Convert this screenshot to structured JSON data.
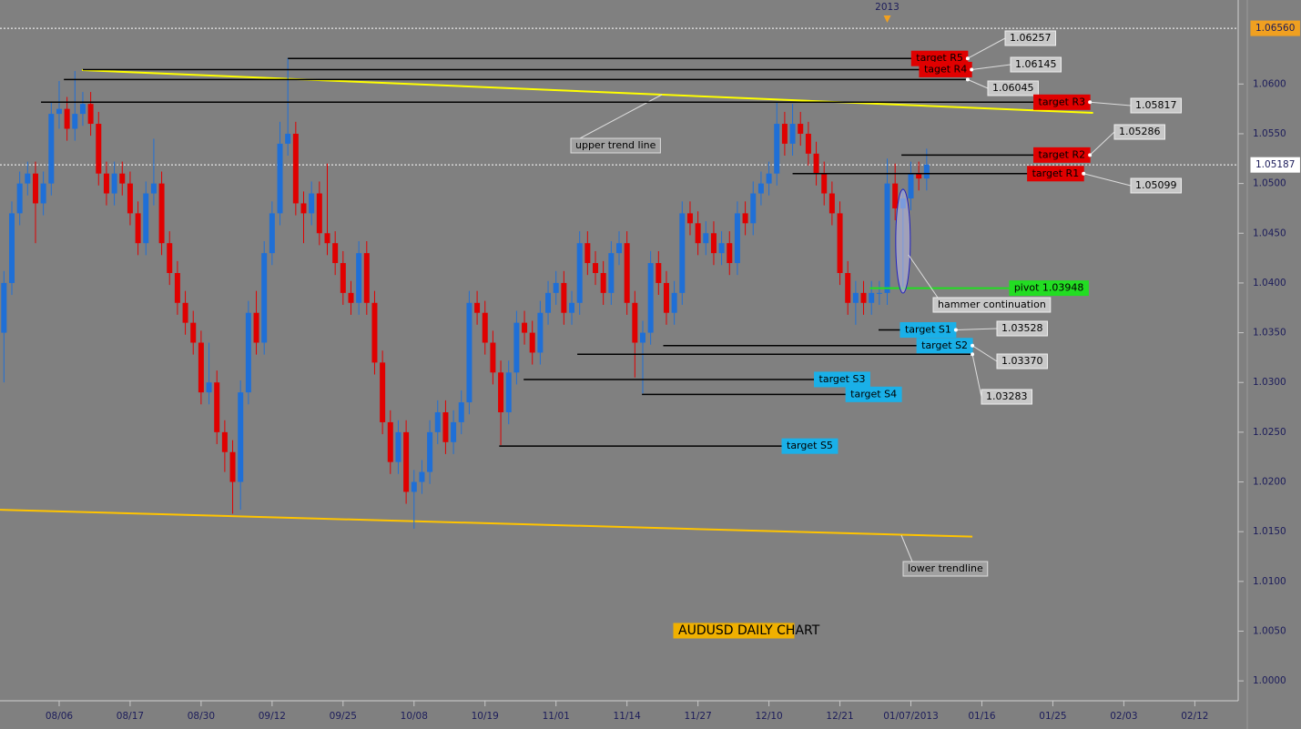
{
  "chart_data": {
    "type": "candlestick",
    "title": "AUDUSD DAILY CHART",
    "up_color": "#1f6fd6",
    "down_color": "#e00000",
    "open": [
      1.035,
      1.04,
      1.047,
      1.05,
      1.051,
      1.048,
      1.05,
      1.057,
      1.0575,
      1.0555,
      1.057,
      1.058,
      1.056,
      1.051,
      1.049,
      1.051,
      1.05,
      1.047,
      1.044,
      1.049,
      1.05,
      1.044,
      1.041,
      1.038,
      1.036,
      1.034,
      1.029,
      1.03,
      1.025,
      1.023,
      1.02,
      1.029,
      1.037,
      1.034,
      1.043,
      1.047,
      1.054,
      1.055,
      1.048,
      1.047,
      1.049,
      1.045,
      1.044,
      1.042,
      1.039,
      1.038,
      1.043,
      1.038,
      1.032,
      1.026,
      1.022,
      1.025,
      1.019,
      1.02,
      1.021,
      1.025,
      1.027,
      1.024,
      1.026,
      1.028,
      1.038,
      1.037,
      1.034,
      1.031,
      1.027,
      1.031,
      1.036,
      1.035,
      1.033,
      1.037,
      1.039,
      1.04,
      1.037,
      1.038,
      1.044,
      1.042,
      1.041,
      1.039,
      1.043,
      1.044,
      1.038,
      1.034,
      1.035,
      1.042,
      1.04,
      1.037,
      1.039,
      1.047,
      1.046,
      1.044,
      1.045,
      1.043,
      1.044,
      1.042,
      1.047,
      1.046,
      1.049,
      1.05,
      1.051,
      1.056,
      1.054,
      1.056,
      1.055,
      1.053,
      1.051,
      1.049,
      1.047,
      1.041,
      1.038,
      1.039,
      1.038,
      1.039,
      1.039,
      1.05,
      1.0475,
      1.0485,
      1.051,
      1.0505
    ],
    "high": [
      1.0412,
      1.0482,
      1.0512,
      1.0522,
      1.0522,
      1.0512,
      1.0582,
      1.0603,
      1.0587,
      1.0613,
      1.0592,
      1.0592,
      1.0572,
      1.0522,
      1.0522,
      1.0522,
      1.0512,
      1.0482,
      1.0502,
      1.0545,
      1.0512,
      1.0452,
      1.0422,
      1.0392,
      1.0372,
      1.0352,
      1.034,
      1.0312,
      1.0262,
      1.0242,
      1.0302,
      1.0382,
      1.0392,
      1.0442,
      1.0482,
      1.0562,
      1.0626,
      1.0562,
      1.0492,
      1.0502,
      1.0502,
      1.052,
      1.0452,
      1.0432,
      1.0402,
      1.0442,
      1.0442,
      1.0392,
      1.0332,
      1.0272,
      1.0262,
      1.0262,
      1.0212,
      1.0222,
      1.0262,
      1.0282,
      1.0282,
      1.0272,
      1.0292,
      1.0392,
      1.0392,
      1.0382,
      1.0352,
      1.0322,
      1.0322,
      1.0372,
      1.0372,
      1.0362,
      1.0382,
      1.0402,
      1.0412,
      1.0412,
      1.0392,
      1.0452,
      1.0452,
      1.0432,
      1.0422,
      1.0442,
      1.0452,
      1.0452,
      1.0392,
      1.0362,
      1.0432,
      1.0432,
      1.0412,
      1.0402,
      1.0482,
      1.0482,
      1.0472,
      1.0462,
      1.0462,
      1.0452,
      1.0452,
      1.0482,
      1.0482,
      1.0502,
      1.0512,
      1.0522,
      1.0582,
      1.0572,
      1.058,
      1.0572,
      1.0562,
      1.0542,
      1.0522,
      1.0502,
      1.0482,
      1.0422,
      1.0402,
      1.0402,
      1.0402,
      1.0402,
      1.0525,
      1.052,
      1.0495,
      1.0522,
      1.0522,
      1.0535
    ],
    "low": [
      1.03,
      1.0388,
      1.0458,
      1.0488,
      1.044,
      1.0468,
      1.0488,
      1.0555,
      1.0543,
      1.0543,
      1.0558,
      1.0548,
      1.0498,
      1.0478,
      1.0478,
      1.0488,
      1.0458,
      1.0428,
      1.0428,
      1.0478,
      1.0428,
      1.0398,
      1.0368,
      1.0348,
      1.0328,
      1.0278,
      1.0278,
      1.0238,
      1.021,
      1.0168,
      1.0172,
      1.0278,
      1.0328,
      1.0328,
      1.0418,
      1.0458,
      1.0528,
      1.0468,
      1.044,
      1.0458,
      1.0438,
      1.0428,
      1.0408,
      1.0378,
      1.0368,
      1.0368,
      1.0368,
      1.0308,
      1.0248,
      1.0208,
      1.0208,
      1.0178,
      1.0153,
      1.0188,
      1.0198,
      1.0238,
      1.0228,
      1.0228,
      1.0248,
      1.0268,
      1.0358,
      1.0328,
      1.0298,
      1.0237,
      1.0258,
      1.0298,
      1.0338,
      1.0318,
      1.0318,
      1.0358,
      1.0378,
      1.0358,
      1.0358,
      1.0368,
      1.0408,
      1.0398,
      1.0378,
      1.0378,
      1.0418,
      1.0368,
      1.0305,
      1.0289,
      1.0338,
      1.0388,
      1.0358,
      1.0358,
      1.0378,
      1.0448,
      1.0428,
      1.0428,
      1.0418,
      1.0418,
      1.0408,
      1.0408,
      1.0448,
      1.0448,
      1.0478,
      1.0488,
      1.0498,
      1.0528,
      1.0528,
      1.0538,
      1.0518,
      1.0498,
      1.0478,
      1.0458,
      1.0398,
      1.0368,
      1.0358,
      1.0368,
      1.0368,
      1.0378,
      1.0378,
      1.0463,
      1.0395,
      1.0473,
      1.0493,
      1.0493
    ],
    "close": [
      1.04,
      1.047,
      1.05,
      1.051,
      1.048,
      1.05,
      1.057,
      1.0575,
      1.0555,
      1.057,
      1.058,
      1.056,
      1.051,
      1.049,
      1.051,
      1.05,
      1.047,
      1.044,
      1.049,
      1.05,
      1.044,
      1.041,
      1.038,
      1.036,
      1.034,
      1.029,
      1.03,
      1.025,
      1.023,
      1.02,
      1.029,
      1.037,
      1.034,
      1.043,
      1.047,
      1.054,
      1.055,
      1.048,
      1.047,
      1.049,
      1.045,
      1.044,
      1.042,
      1.039,
      1.038,
      1.043,
      1.038,
      1.032,
      1.026,
      1.022,
      1.025,
      1.019,
      1.02,
      1.021,
      1.025,
      1.027,
      1.024,
      1.026,
      1.028,
      1.038,
      1.037,
      1.034,
      1.031,
      1.027,
      1.031,
      1.036,
      1.035,
      1.033,
      1.037,
      1.039,
      1.04,
      1.037,
      1.038,
      1.044,
      1.042,
      1.041,
      1.039,
      1.043,
      1.044,
      1.038,
      1.034,
      1.035,
      1.042,
      1.04,
      1.037,
      1.039,
      1.047,
      1.046,
      1.044,
      1.045,
      1.043,
      1.044,
      1.042,
      1.047,
      1.046,
      1.049,
      1.05,
      1.051,
      1.056,
      1.054,
      1.056,
      1.055,
      1.053,
      1.051,
      1.049,
      1.047,
      1.041,
      1.038,
      1.039,
      1.038,
      1.039,
      1.039,
      1.05,
      1.0475,
      1.0485,
      1.051,
      1.0505,
      1.0519
    ],
    "xlim": [
      -0.5,
      156.5
    ],
    "xticks": [
      {
        "value": 7,
        "label": "08/06"
      },
      {
        "value": 16,
        "label": "08/17"
      },
      {
        "value": 25,
        "label": "08/30"
      },
      {
        "value": 34,
        "label": "09/12"
      },
      {
        "value": 43,
        "label": "09/25"
      },
      {
        "value": 52,
        "label": "10/08"
      },
      {
        "value": 61,
        "label": "10/19"
      },
      {
        "value": 70,
        "label": "11/01"
      },
      {
        "value": 79,
        "label": "11/14"
      },
      {
        "value": 88,
        "label": "11/27"
      },
      {
        "value": 97,
        "label": "12/10"
      },
      {
        "value": 106,
        "label": "12/21"
      },
      {
        "value": 115,
        "label": "01/07/2013"
      },
      {
        "value": 124,
        "label": "01/16"
      },
      {
        "value": 133,
        "label": "01/25"
      },
      {
        "value": 142,
        "label": "02/03"
      },
      {
        "value": 151,
        "label": "02/12"
      }
    ],
    "ylim": [
      0.998,
      1.0657
    ],
    "yticks": [
      {
        "value": 1,
        "label": "1.0000"
      },
      {
        "value": 1.005,
        "label": "1.0050"
      },
      {
        "value": 1.01,
        "label": "1.0100"
      },
      {
        "value": 1.015,
        "label": "1.0150"
      },
      {
        "value": 1.02,
        "label": "1.0200"
      },
      {
        "value": 1.025,
        "label": "1.0250"
      },
      {
        "value": 1.03,
        "label": "1.0300"
      },
      {
        "value": 1.035,
        "label": "1.0350"
      },
      {
        "value": 1.04,
        "label": "1.0400"
      },
      {
        "value": 1.045,
        "label": "1.0450"
      },
      {
        "value": 1.05,
        "label": "1.0500"
      },
      {
        "value": 1.055,
        "label": "1.0550"
      },
      {
        "value": 1.06,
        "label": "1.0600"
      }
    ],
    "grid": false,
    "period_marker": {
      "label": "2013",
      "x": 112
    },
    "current_price": 1.05187,
    "high_line": {
      "value": 1.0656,
      "label": "1.06560"
    },
    "levels": [
      {
        "value": 1.06257,
        "from": 36,
        "to": 122.2,
        "tag": "target R5",
        "color": "#e00000",
        "line_color": "#000000",
        "price_box": true
      },
      {
        "value": 1.06145,
        "from": 10,
        "to": 122.7,
        "tag": "taget R4",
        "color": "#e00000",
        "line_color": "#000000",
        "price_box": true
      },
      {
        "value": 1.06045,
        "from": 7.6,
        "to": 122.2,
        "line_color": "#000000",
        "price_box": true
      },
      {
        "value": 1.05817,
        "from": 4.7,
        "to": 137.7,
        "tag": "target R3",
        "color": "#e00000",
        "line_color": "#000000",
        "price_box": true
      },
      {
        "value": 1.05286,
        "from": 113.8,
        "to": 137.7,
        "tag": "target R2",
        "color": "#e00000",
        "line_color": "#000000",
        "price_box": true
      },
      {
        "value": 1.05099,
        "from": 100,
        "to": 136.9,
        "tag": "target R1",
        "color": "#e00000",
        "line_color": "#000000",
        "price_box": true
      },
      {
        "value": 1.03948,
        "from": 109.8,
        "to": 137.5,
        "tag": "pivot 1.03948",
        "color": "#22dd22",
        "line_color": "#22dd22",
        "price_box": false
      },
      {
        "value": 1.03528,
        "from": 110.9,
        "to": 120.7,
        "tag": "target S1",
        "color": "#1ab0e8",
        "line_color": "#000000",
        "price_box": true
      },
      {
        "value": 1.0337,
        "value_label": "1.03370",
        "from": 83.6,
        "to": 122.8,
        "tag": "target S2",
        "color": "#1ab0e8",
        "line_color": "#000000",
        "price_box": true
      },
      {
        "value": 1.03283,
        "from": 72.7,
        "to": 122.8,
        "line_color": "#000000",
        "price_box": true
      },
      {
        "value": 1.0303,
        "from": 65.9,
        "to": 109.8,
        "tag": "target S3",
        "color": "#1ab0e8",
        "line_color": "#000000",
        "price_box": false
      },
      {
        "value": 1.0288,
        "from": 80.9,
        "to": 113.8,
        "tag": "target S4",
        "color": "#1ab0e8",
        "line_color": "#000000",
        "price_box": false
      },
      {
        "value": 1.0236,
        "from": 62.8,
        "to": 105.7,
        "tag": "target S5",
        "color": "#1ab0e8",
        "line_color": "#000000",
        "price_box": false
      }
    ],
    "trendlines": [
      {
        "label": "upper trend line",
        "x": [
          9.9,
          138.1
        ],
        "y": [
          1.0614,
          1.0571
        ],
        "color": "#ffff00"
      },
      {
        "label": "lower trendline",
        "x": [
          -0.5,
          122.8
        ],
        "y": [
          1.0172,
          1.0145
        ],
        "color": "#ffc400"
      }
    ],
    "annotation": {
      "text": "hammer continuation",
      "x": 114,
      "y": 1.0442
    }
  }
}
